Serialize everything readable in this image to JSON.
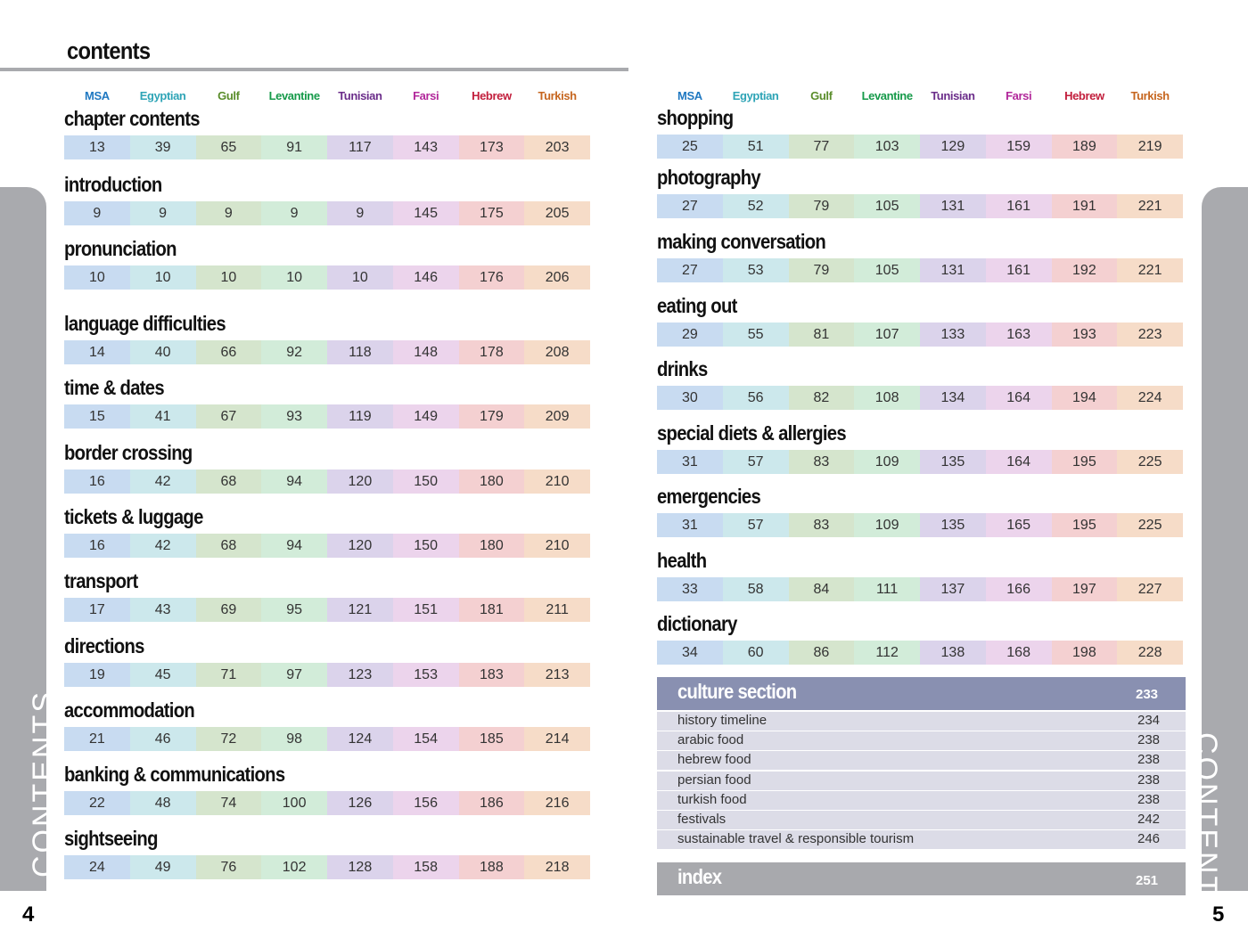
{
  "header": {
    "title": "contents"
  },
  "languages": [
    "MSA",
    "Egyptian",
    "Gulf",
    "Levantine",
    "Tunisian",
    "Farsi",
    "Hebrew",
    "Turkish"
  ],
  "left_page": {
    "page_number": 4,
    "side_tab": "CONTENTS",
    "sections": [
      {
        "title": "chapter contents",
        "pages": [
          13,
          39,
          65,
          91,
          117,
          143,
          173,
          203
        ]
      },
      {
        "title": "introduction",
        "pages": [
          9,
          9,
          9,
          9,
          9,
          145,
          175,
          205
        ]
      },
      {
        "title": "pronunciation",
        "pages": [
          10,
          10,
          10,
          10,
          10,
          146,
          176,
          206
        ]
      },
      {
        "title": "language difficulties",
        "pages": [
          14,
          40,
          66,
          92,
          118,
          148,
          178,
          208
        ]
      },
      {
        "title": "time & dates",
        "pages": [
          15,
          41,
          67,
          93,
          119,
          149,
          179,
          209
        ]
      },
      {
        "title": "border crossing",
        "pages": [
          16,
          42,
          68,
          94,
          120,
          150,
          180,
          210
        ]
      },
      {
        "title": "tickets & luggage",
        "pages": [
          16,
          42,
          68,
          94,
          120,
          150,
          180,
          210
        ]
      },
      {
        "title": "transport",
        "pages": [
          17,
          43,
          69,
          95,
          121,
          151,
          181,
          211
        ]
      },
      {
        "title": "directions",
        "pages": [
          19,
          45,
          71,
          97,
          123,
          153,
          183,
          213
        ]
      },
      {
        "title": "accommodation",
        "pages": [
          21,
          46,
          72,
          98,
          124,
          154,
          185,
          214
        ]
      },
      {
        "title": "banking & communications",
        "pages": [
          22,
          48,
          74,
          100,
          126,
          156,
          186,
          216
        ]
      },
      {
        "title": "sightseeing",
        "pages": [
          24,
          49,
          76,
          102,
          128,
          158,
          188,
          218
        ]
      }
    ]
  },
  "right_page": {
    "page_number": 5,
    "side_tab": "CONTENTS",
    "sections": [
      {
        "title": "shopping",
        "pages": [
          25,
          51,
          77,
          103,
          129,
          159,
          189,
          219
        ]
      },
      {
        "title": "photography",
        "pages": [
          27,
          52,
          79,
          105,
          131,
          161,
          191,
          221
        ]
      },
      {
        "title": "making conversation",
        "pages": [
          27,
          53,
          79,
          105,
          131,
          161,
          192,
          221
        ]
      },
      {
        "title": "eating out",
        "pages": [
          29,
          55,
          81,
          107,
          133,
          163,
          193,
          223
        ]
      },
      {
        "title": "drinks",
        "pages": [
          30,
          56,
          82,
          108,
          134,
          164,
          194,
          224
        ]
      },
      {
        "title": "special diets & allergies",
        "pages": [
          31,
          57,
          83,
          109,
          135,
          164,
          195,
          225
        ]
      },
      {
        "title": "emergencies",
        "pages": [
          31,
          57,
          83,
          109,
          135,
          165,
          195,
          225
        ]
      },
      {
        "title": "health",
        "pages": [
          33,
          58,
          84,
          111,
          137,
          166,
          197,
          227
        ]
      },
      {
        "title": "dictionary",
        "pages": [
          34,
          60,
          86,
          112,
          138,
          168,
          198,
          228
        ]
      }
    ],
    "culture_section": {
      "title": "culture section",
      "page": 233,
      "items": [
        {
          "title": "history timeline",
          "page": 234
        },
        {
          "title": "arabic food",
          "page": 238
        },
        {
          "title": "hebrew food",
          "page": 238
        },
        {
          "title": "persian food",
          "page": 238
        },
        {
          "title": "turkish food",
          "page": 238
        },
        {
          "title": "festivals",
          "page": 242
        },
        {
          "title": "sustainable travel & responsible tourism",
          "page": 246
        }
      ]
    },
    "index": {
      "title": "index",
      "page": 251
    }
  }
}
